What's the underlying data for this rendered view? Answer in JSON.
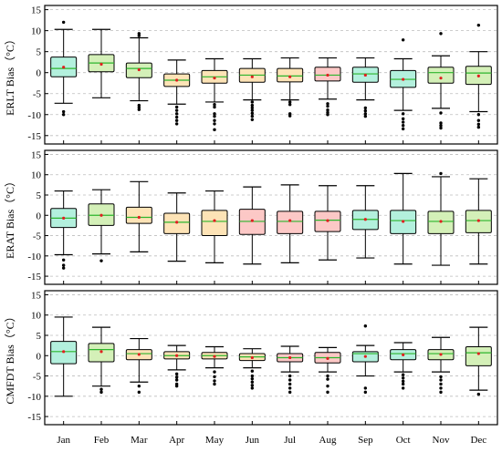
{
  "chart_data": [
    {
      "type": "box",
      "ylabel": "ERLT Bias（°C）",
      "ylim": [
        -17,
        16
      ],
      "yticks": [
        -15,
        -10,
        -5,
        0,
        5,
        10,
        15
      ],
      "grid": "horizontal-dashed",
      "categories": [
        "Jan",
        "Feb",
        "Mar",
        "Apr",
        "May",
        "Jun",
        "Jul",
        "Aug",
        "Sep",
        "Oct",
        "Nov",
        "Dec"
      ],
      "boxes": [
        {
          "whisker_low": -7.3,
          "q1": -1.0,
          "median": 1.0,
          "q3": 3.7,
          "whisker_high": 10.3,
          "mean": 1.3,
          "color": "#b3f0dd",
          "outliers": [
            12.0,
            -9.3,
            -10.0
          ]
        },
        {
          "whisker_low": -6.0,
          "q1": 0.2,
          "median": 2.3,
          "q3": 4.3,
          "whisker_high": 10.3,
          "mean": 2.0,
          "color": "#d4f0b8",
          "outliers": []
        },
        {
          "whisker_low": -6.7,
          "q1": -1.2,
          "median": 1.0,
          "q3": 2.3,
          "whisker_high": 8.3,
          "mean": 0.7,
          "color": "#d4f0b8",
          "outliers": [
            9.3,
            8.8,
            -7.8,
            -8.3,
            -8.8
          ]
        },
        {
          "whisker_low": -7.5,
          "q1": -3.3,
          "median": -1.8,
          "q3": -0.3,
          "whisker_high": 3.0,
          "mean": -1.8,
          "color": "#fde3b6",
          "outliers": [
            -8.2,
            -9.0,
            -9.8,
            -10.6,
            -11.4,
            -12.2
          ]
        },
        {
          "whisker_low": -7.0,
          "q1": -2.5,
          "median": -1.0,
          "q3": 0.5,
          "whisker_high": 3.3,
          "mean": -1.3,
          "color": "#fde3b6",
          "outliers": [
            -7.6,
            -8.2,
            -9.8,
            -10.4,
            -11.4,
            -12.2,
            -13.6
          ]
        },
        {
          "whisker_low": -6.5,
          "q1": -2.3,
          "median": -0.6,
          "q3": 1.0,
          "whisker_high": 3.3,
          "mean": -1.0,
          "color": "#fde3b6",
          "outliers": [
            -7.0,
            -7.8,
            -8.4,
            -9.0,
            -9.7,
            -10.4,
            -11.2
          ]
        },
        {
          "whisker_low": -6.5,
          "q1": -2.2,
          "median": -0.8,
          "q3": 1.0,
          "whisker_high": 3.5,
          "mean": -1.0,
          "color": "#fde3b6",
          "outliers": [
            -7.0,
            -7.6,
            -9.8,
            -10.3
          ]
        },
        {
          "whisker_low": -6.3,
          "q1": -2.0,
          "median": -0.6,
          "q3": 1.3,
          "whisker_high": 3.5,
          "mean": -0.6,
          "color": "#fcc8c6",
          "outliers": [
            -7.4,
            -8.0,
            -8.9,
            -9.5,
            -10.0
          ]
        },
        {
          "whisker_low": -6.5,
          "q1": -2.3,
          "median": -0.3,
          "q3": 1.3,
          "whisker_high": 3.5,
          "mean": -0.6,
          "color": "#b3f0dd",
          "outliers": [
            -8.4,
            -9.1,
            -9.8,
            -10.4
          ]
        },
        {
          "whisker_low": -9.0,
          "q1": -3.5,
          "median": -1.6,
          "q3": 0.5,
          "whisker_high": 3.3,
          "mean": -1.6,
          "color": "#b3f0dd",
          "outliers": [
            7.8,
            -9.8,
            -11.0,
            -11.8,
            -12.6,
            -13.4
          ]
        },
        {
          "whisker_low": -8.5,
          "q1": -2.5,
          "median": 0.0,
          "q3": 1.3,
          "whisker_high": 4.0,
          "mean": -1.3,
          "color": "#d4f0b8",
          "outliers": [
            9.3,
            -9.6,
            -12.0,
            -12.6,
            -13.2
          ]
        },
        {
          "whisker_low": -9.3,
          "q1": -2.8,
          "median": -0.1,
          "q3": 1.5,
          "whisker_high": 5.0,
          "mean": -0.8,
          "color": "#d4f0b8",
          "outliers": [
            11.3,
            -10.0,
            -11.4,
            -12.3,
            -13.0
          ]
        }
      ]
    },
    {
      "type": "box",
      "ylabel": "ERAT Bias（°C）",
      "ylim": [
        -17,
        16
      ],
      "yticks": [
        -15,
        -10,
        -5,
        0,
        5,
        10,
        15
      ],
      "grid": "horizontal-dashed",
      "categories": [
        "Jan",
        "Feb",
        "Mar",
        "Apr",
        "May",
        "Jun",
        "Jul",
        "Aug",
        "Sep",
        "Oct",
        "Nov",
        "Dec"
      ],
      "boxes": [
        {
          "whisker_low": -9.7,
          "q1": -3.0,
          "median": -0.7,
          "q3": 1.7,
          "whisker_high": 6.0,
          "mean": -0.7,
          "color": "#b3f0dd",
          "outliers": [
            -11.0,
            -12.3,
            -13.0
          ]
        },
        {
          "whisker_low": -9.5,
          "q1": -2.5,
          "median": 0.0,
          "q3": 2.8,
          "whisker_high": 6.3,
          "mean": 0.0,
          "color": "#d4f0b8",
          "outliers": [
            -11.2
          ]
        },
        {
          "whisker_low": -9.0,
          "q1": -2.0,
          "median": -0.5,
          "q3": 2.0,
          "whisker_high": 8.3,
          "mean": -0.5,
          "color": "#fde3b6",
          "outliers": []
        },
        {
          "whisker_low": -11.3,
          "q1": -4.5,
          "median": -1.7,
          "q3": 0.5,
          "whisker_high": 5.5,
          "mean": -1.7,
          "color": "#fde3b6",
          "outliers": []
        },
        {
          "whisker_low": -11.7,
          "q1": -5.0,
          "median": -1.5,
          "q3": 1.2,
          "whisker_high": 6.0,
          "mean": -1.3,
          "color": "#fde3b6",
          "outliers": []
        },
        {
          "whisker_low": -12.0,
          "q1": -4.7,
          "median": -1.5,
          "q3": 1.5,
          "whisker_high": 7.0,
          "mean": -1.3,
          "color": "#fcc8c6",
          "outliers": []
        },
        {
          "whisker_low": -11.7,
          "q1": -4.5,
          "median": -1.5,
          "q3": 1.0,
          "whisker_high": 7.5,
          "mean": -1.3,
          "color": "#fcc8c6",
          "outliers": []
        },
        {
          "whisker_low": -11.0,
          "q1": -4.0,
          "median": -1.2,
          "q3": 1.0,
          "whisker_high": 7.3,
          "mean": -1.3,
          "color": "#fcc8c6",
          "outliers": []
        },
        {
          "whisker_low": -10.5,
          "q1": -3.5,
          "median": -1.0,
          "q3": 1.2,
          "whisker_high": 7.3,
          "mean": -1.0,
          "color": "#b3f0dd",
          "outliers": []
        },
        {
          "whisker_low": -12.0,
          "q1": -4.5,
          "median": -1.3,
          "q3": 1.2,
          "whisker_high": 10.3,
          "mean": -1.5,
          "color": "#b3f0dd",
          "outliers": []
        },
        {
          "whisker_low": -12.3,
          "q1": -4.5,
          "median": -1.5,
          "q3": 1.0,
          "whisker_high": 9.5,
          "mean": -1.5,
          "color": "#d4f0b8",
          "outliers": [
            10.3
          ]
        },
        {
          "whisker_low": -12.0,
          "q1": -4.3,
          "median": -1.3,
          "q3": 1.2,
          "whisker_high": 9.0,
          "mean": -1.3,
          "color": "#d4f0b8",
          "outliers": []
        }
      ]
    },
    {
      "type": "box",
      "ylabel": "CMFDT Bias（°C）",
      "ylim": [
        -17,
        16
      ],
      "yticks": [
        -15,
        -10,
        -5,
        0,
        5,
        10,
        15
      ],
      "grid": "horizontal-dashed",
      "categories": [
        "Jan",
        "Feb",
        "Mar",
        "Apr",
        "May",
        "Jun",
        "Jul",
        "Aug",
        "Sep",
        "Oct",
        "Nov",
        "Dec"
      ],
      "boxes": [
        {
          "whisker_low": -10.0,
          "q1": -2.0,
          "median": 1.0,
          "q3": 3.5,
          "whisker_high": 9.5,
          "mean": 1.0,
          "color": "#b3f0dd",
          "outliers": []
        },
        {
          "whisker_low": -7.5,
          "q1": -1.5,
          "median": 1.5,
          "q3": 3.0,
          "whisker_high": 7.0,
          "mean": 1.0,
          "color": "#d4f0b8",
          "outliers": [
            -8.3,
            -9.0
          ]
        },
        {
          "whisker_low": -6.5,
          "q1": -1.0,
          "median": 0.5,
          "q3": 1.5,
          "whisker_high": 4.2,
          "mean": 0.3,
          "color": "#fde3b6",
          "outliers": [
            -7.5,
            -9.0
          ]
        },
        {
          "whisker_low": -3.5,
          "q1": -0.8,
          "median": 0.0,
          "q3": 1.0,
          "whisker_high": 2.5,
          "mean": 0.0,
          "color": "#fde3b6",
          "outliers": [
            -4.5,
            -5.3,
            -6.0,
            -7.0,
            -7.5
          ]
        },
        {
          "whisker_low": -3.0,
          "q1": -0.8,
          "median": 0.0,
          "q3": 0.8,
          "whisker_high": 2.2,
          "mean": -0.2,
          "color": "#fde3b6",
          "outliers": [
            -4.0,
            -5.2,
            -6.2,
            -7.0
          ]
        },
        {
          "whisker_low": -3.0,
          "q1": -1.2,
          "median": -0.3,
          "q3": 0.5,
          "whisker_high": 1.7,
          "mean": -0.5,
          "color": "#fde3b6",
          "outliers": [
            -3.8,
            -5.0,
            -5.7,
            -6.5,
            -7.3,
            -8.0
          ]
        },
        {
          "whisker_low": -4.0,
          "q1": -1.5,
          "median": -0.5,
          "q3": 0.5,
          "whisker_high": 2.3,
          "mean": -0.5,
          "color": "#fcc8c6",
          "outliers": [
            -5.0,
            -6.0,
            -7.0,
            -8.0,
            -9.0
          ]
        },
        {
          "whisker_low": -4.0,
          "q1": -1.8,
          "median": -0.5,
          "q3": 0.8,
          "whisker_high": 2.0,
          "mean": -0.7,
          "color": "#fcc8c6",
          "outliers": [
            -5.0,
            -5.8,
            -7.5,
            -9.0
          ]
        },
        {
          "whisker_low": -5.0,
          "q1": -1.5,
          "median": 0.5,
          "q3": 1.0,
          "whisker_high": 2.5,
          "mean": -0.2,
          "color": "#b3f0dd",
          "outliers": [
            7.3,
            -8.0,
            -9.0
          ]
        },
        {
          "whisker_low": -4.0,
          "q1": -1.0,
          "median": 0.5,
          "q3": 1.5,
          "whisker_high": 3.2,
          "mean": 0.2,
          "color": "#b3f0dd",
          "outliers": [
            -4.7,
            -5.5,
            -6.3,
            -7.0,
            -8.0
          ]
        },
        {
          "whisker_low": -4.0,
          "q1": -1.0,
          "median": 0.5,
          "q3": 1.5,
          "whisker_high": 4.5,
          "mean": 0.3,
          "color": "#d4f0b8",
          "outliers": [
            -5.2,
            -6.0,
            -7.0,
            -8.0,
            -9.0
          ]
        },
        {
          "whisker_low": -8.5,
          "q1": -2.5,
          "median": 0.7,
          "q3": 2.2,
          "whisker_high": 7.0,
          "mean": 0.5,
          "color": "#d4f0b8",
          "outliers": [
            -9.5
          ]
        }
      ]
    }
  ],
  "style": {
    "median_color": "#2db52d",
    "mean_color": "#e02020",
    "frame_color": "#000000",
    "grid_color": "#bdbdbd"
  }
}
